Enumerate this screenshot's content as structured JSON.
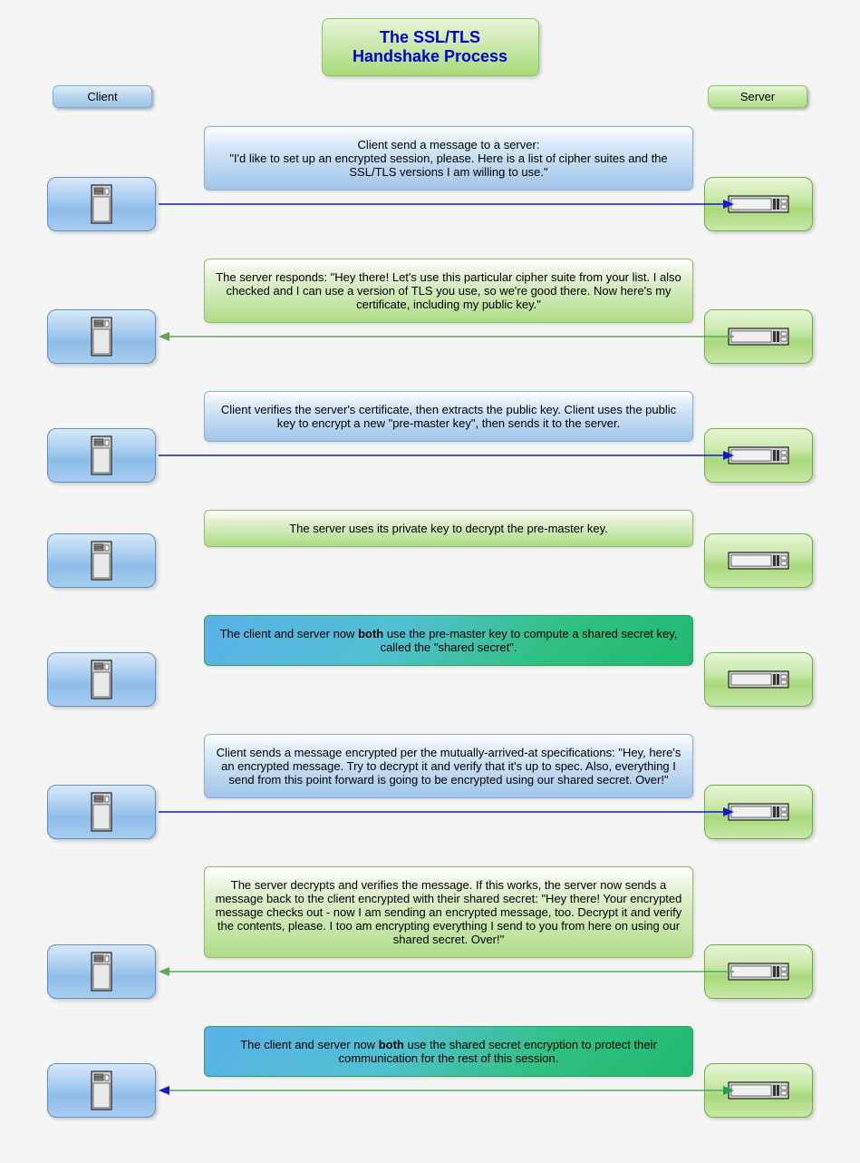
{
  "title_line1": "The SSL/TLS",
  "title_line2": "Handshake Process",
  "labels": {
    "client": "Client",
    "server": "Server"
  },
  "colors": {
    "client_arrow": "#1818c8",
    "server_arrow": "#58a858",
    "both_arrow_left": "#1818c8",
    "both_arrow_right": "#20a050",
    "client_box_bg_top": "#d8e8f8",
    "client_box_bg_bot": "#8cbce8",
    "server_box_bg_top": "#e8f5d8",
    "server_box_bg_bot": "#a8d87a",
    "msg_client_top": "#ffffff",
    "msg_client_bot": "#a0c4e8",
    "msg_server_top": "#ffffff",
    "msg_server_bot": "#b0dc88",
    "msg_both_left": "#5ab0e8",
    "msg_both_right": "#20b870",
    "title_text": "#0000cc",
    "page_bg": "#f5f5f5"
  },
  "steps": [
    {
      "type": "client",
      "arrow": "right",
      "text_pre": "Client send a message to a server:",
      "text": "\"I'd like to set up an encrypted session, please. Here is a list of cipher suites and the SSL/TLS versions I am willing to use.\""
    },
    {
      "type": "server",
      "arrow": "left",
      "text": "The server responds: \"Hey there! Let's use this particular cipher suite from your list. I also checked and I can use a version of TLS you use, so we're good there. Now here's my certificate, including my public key.\""
    },
    {
      "type": "client",
      "arrow": "right",
      "text": "Client verifies the server's certificate, then extracts the public key. Client uses the public key to encrypt a new \"pre-master key\", then sends it to the server."
    },
    {
      "type": "server",
      "arrow": "none",
      "text": "The server uses its private key to decrypt the pre-master key."
    },
    {
      "type": "both",
      "arrow": "none",
      "bold_word": "both",
      "text_before": "The client and server now ",
      "text_after": " use the pre-master key to compute a shared secret key, called the \"shared secret\"."
    },
    {
      "type": "client",
      "arrow": "right",
      "text": "Client sends a message encrypted per the mutually-arrived-at specifications: \"Hey, here's an encrypted message. Try to decrypt it and verify that it's up to spec. Also, everything I send from this point forward is going to be encrypted using our shared secret. Over!\""
    },
    {
      "type": "server",
      "arrow": "left",
      "text": "The server decrypts and verifies the message. If this works, the server now sends a message back to the client encrypted with their shared secret: \"Hey there! Your encrypted message checks out - now I am sending an encrypted message, too. Decrypt it and verify the contents, please. I too am encrypting everything I send to you from here on using our shared secret. Over!\""
    },
    {
      "type": "both",
      "arrow": "both",
      "bold_word": "both",
      "text_before": "The client and server now ",
      "text_after": " use the shared secret encryption to protect their communication for the rest of this session."
    }
  ]
}
